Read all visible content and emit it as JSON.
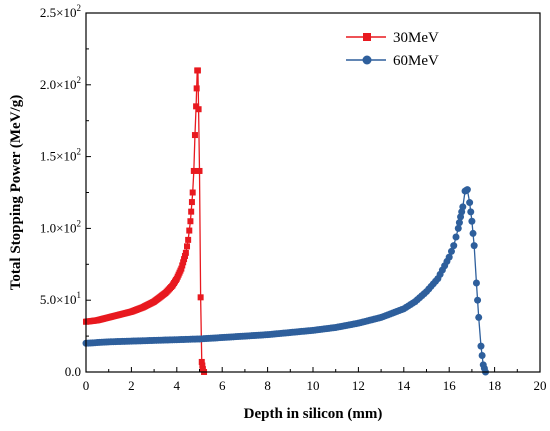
{
  "chart_data": {
    "type": "line",
    "xlabel": "Depth in silicon (mm)",
    "ylabel": "Total Stopping Power (MeV/g)",
    "xlim": [
      0,
      20
    ],
    "ylim": [
      0,
      250
    ],
    "x_ticks": [
      0,
      2,
      4,
      6,
      8,
      10,
      12,
      14,
      16,
      18,
      20
    ],
    "x_tick_labels": [
      "0",
      "2",
      "4",
      "6",
      "8",
      "10",
      "12",
      "14",
      "16",
      "18",
      "20"
    ],
    "y_ticks": [
      0,
      50,
      100,
      150,
      200,
      250
    ],
    "y_tick_labels": [
      {
        "mantissa": "0.0",
        "exp": ""
      },
      {
        "mantissa": "5.0×10",
        "exp": "1"
      },
      {
        "mantissa": "1.0×10",
        "exp": "2"
      },
      {
        "mantissa": "1.5×10",
        "exp": "2"
      },
      {
        "mantissa": "2.0×10",
        "exp": "2"
      },
      {
        "mantissa": "2.5×10",
        "exp": "2"
      }
    ],
    "grid": false,
    "legend_position": "top-right",
    "series": [
      {
        "name": "30MeV",
        "color": "#e8191f",
        "marker": "square",
        "x": [
          0,
          0.5,
          1.0,
          1.5,
          2.0,
          2.5,
          3.0,
          3.5,
          3.8,
          4.0,
          4.2,
          4.4,
          4.5,
          4.6,
          4.7,
          4.75,
          4.8,
          4.85,
          4.9,
          4.93,
          4.96,
          5.0,
          5.05,
          5.1,
          5.15,
          5.2
        ],
        "y": [
          35,
          36,
          38,
          40,
          42,
          45,
          49,
          55,
          60,
          65,
          72,
          83,
          92,
          105,
          125,
          140,
          165,
          185,
          210,
          210,
          183,
          140,
          52,
          7,
          2,
          0
        ]
      },
      {
        "name": "60MeV",
        "color": "#2e5f9c",
        "marker": "circle",
        "x": [
          0,
          1,
          2,
          3,
          4,
          5,
          6,
          7,
          8,
          9,
          10,
          11,
          12,
          13,
          14,
          14.5,
          15,
          15.5,
          16,
          16.2,
          16.4,
          16.5,
          16.6,
          16.7,
          16.8,
          16.9,
          17.0,
          17.1,
          17.2,
          17.3,
          17.4,
          17.5,
          17.6
        ],
        "y": [
          20,
          21,
          21.5,
          22,
          22.5,
          23,
          24,
          25,
          26,
          27.5,
          29,
          31,
          34,
          38,
          44,
          49,
          56,
          65,
          80,
          88,
          100,
          108,
          115,
          126,
          127,
          118,
          105,
          88,
          62,
          38,
          18,
          5,
          0
        ]
      }
    ]
  }
}
